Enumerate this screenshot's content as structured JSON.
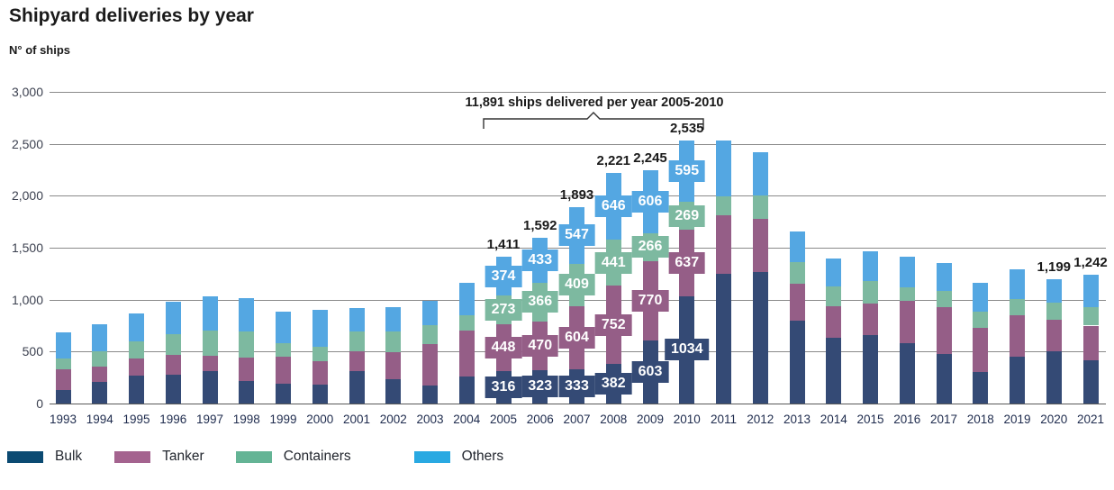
{
  "header": {
    "title": "Shipyard deliveries by year",
    "subtitle": "N° of ships"
  },
  "annotation": {
    "text": "11,891 ships delivered per year 2005-2010",
    "span_years": [
      "2005",
      "2010"
    ]
  },
  "chart_data": {
    "type": "bar",
    "stacked": true,
    "title": "Shipyard deliveries by year",
    "ylabel": "N° of ships",
    "xlabel": "",
    "ylim": [
      0,
      3000
    ],
    "grid": true,
    "legend_position": "bottom",
    "yticks": [
      {
        "value": 3000,
        "label": "3,000"
      },
      {
        "value": 2500,
        "label": "2,500"
      },
      {
        "value": 2000,
        "label": "2,000"
      },
      {
        "value": 1500,
        "label": "1,500"
      },
      {
        "value": 1000,
        "label": "1,000"
      },
      {
        "value": 500,
        "label": "500"
      },
      {
        "value": 0,
        "label": "0"
      }
    ],
    "categories": [
      "1993",
      "1994",
      "1995",
      "1996",
      "1997",
      "1998",
      "1999",
      "2000",
      "2001",
      "2002",
      "2003",
      "2004",
      "2005",
      "2006",
      "2007",
      "2008",
      "2009",
      "2010",
      "2011",
      "2012",
      "2013",
      "2014",
      "2015",
      "2016",
      "2017",
      "2018",
      "2019",
      "2020",
      "2021"
    ],
    "series": [
      {
        "name": "Bulk",
        "color": "#344a75",
        "legend_color": "#0b4a72",
        "values": [
          130,
          205,
          270,
          280,
          310,
          215,
          195,
          185,
          315,
          230,
          175,
          263,
          316,
          323,
          333,
          382,
          603,
          1034,
          1250,
          1270,
          800,
          630,
          655,
          580,
          480,
          305,
          450,
          500,
          420
        ]
      },
      {
        "name": "Tanker",
        "color": "#955e87",
        "legend_color": "#a4638f",
        "values": [
          200,
          150,
          160,
          185,
          150,
          225,
          255,
          220,
          190,
          265,
          400,
          437,
          448,
          470,
          604,
          752,
          770,
          637,
          560,
          510,
          355,
          310,
          310,
          405,
          445,
          420,
          400,
          310,
          330
        ]
      },
      {
        "name": "Containers",
        "color": "#7db9a0",
        "legend_color": "#64b495",
        "values": [
          105,
          150,
          165,
          200,
          245,
          255,
          130,
          140,
          185,
          200,
          180,
          152,
          273,
          366,
          409,
          441,
          266,
          269,
          185,
          220,
          210,
          185,
          215,
          135,
          155,
          160,
          160,
          157,
          174
        ]
      },
      {
        "name": "Others",
        "color": "#54a7e2",
        "legend_color": "#29a9e2",
        "values": [
          250,
          255,
          270,
          315,
          325,
          320,
          305,
          360,
          230,
          235,
          235,
          308,
          374,
          433,
          547,
          646,
          606,
          595,
          535,
          415,
          295,
          275,
          285,
          295,
          275,
          280,
          285,
          232,
          318
        ]
      }
    ],
    "segment_labels": {
      "2005": {
        "Bulk": "316",
        "Tanker": "448",
        "Containers": "273",
        "Others": "374"
      },
      "2006": {
        "Bulk": "323",
        "Tanker": "470",
        "Containers": "366",
        "Others": "433"
      },
      "2007": {
        "Bulk": "333",
        "Tanker": "604",
        "Containers": "409",
        "Others": "547"
      },
      "2008": {
        "Bulk": "382",
        "Tanker": "752",
        "Containers": "441",
        "Others": "646"
      },
      "2009": {
        "Bulk": "603",
        "Tanker": "770",
        "Containers": "266",
        "Others": "606"
      },
      "2010": {
        "Bulk": "1034",
        "Tanker": "637",
        "Containers": "269",
        "Others": "595"
      }
    },
    "total_labels": {
      "2005": "1,411",
      "2006": "1,592",
      "2007": "1,893",
      "2008": "2,221",
      "2009": "2,245",
      "2010": "2,535",
      "2020": "1,199",
      "2021": "1,242"
    }
  },
  "legend": {
    "items": [
      {
        "label": "Bulk",
        "color": "#0b4a72"
      },
      {
        "label": "Tanker",
        "color": "#a4638f"
      },
      {
        "label": "Containers",
        "color": "#64b495"
      },
      {
        "label": "Others",
        "color": "#29a9e2"
      }
    ]
  }
}
